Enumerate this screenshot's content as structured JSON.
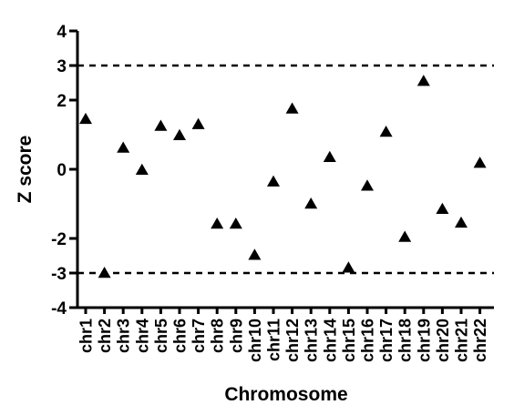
{
  "chart_data": {
    "type": "scatter",
    "title": "",
    "xlabel": "Chromosome",
    "ylabel": "Z score",
    "ylim": [
      -4,
      4
    ],
    "yticks": [
      {
        "value": 4,
        "label": "4"
      },
      {
        "value": 3,
        "label": "3"
      },
      {
        "value": 2,
        "label": "2"
      },
      {
        "value": 0,
        "label": "0"
      },
      {
        "value": -2,
        "label": "-2"
      },
      {
        "value": -3,
        "label": "-3"
      },
      {
        "value": -4,
        "label": "-4"
      }
    ],
    "categories": [
      "chr1",
      "chr2",
      "chr3",
      "chr4",
      "chr5",
      "chr6",
      "chr7",
      "chr8",
      "chr9",
      "chr10",
      "chr11",
      "chr12",
      "chr13",
      "chr14",
      "chr15",
      "chr16",
      "chr17",
      "chr18",
      "chr19",
      "chr20",
      "chr21",
      "chr22"
    ],
    "values": [
      1.45,
      -3.0,
      0.62,
      -0.02,
      1.25,
      0.98,
      1.3,
      -1.58,
      -1.58,
      -2.48,
      -0.36,
      1.75,
      -1.0,
      0.35,
      -2.85,
      -0.48,
      1.08,
      -1.96,
      2.55,
      -1.15,
      -1.55,
      0.18
    ],
    "reference_lines": [
      3,
      -3
    ],
    "marker": "triangle",
    "marker_color": "#000000",
    "grid": false
  }
}
